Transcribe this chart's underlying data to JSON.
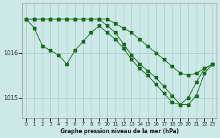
{
  "bg_color": "#cce8e8",
  "grid_color": "#aacccc",
  "line_color": "#1a6b1a",
  "xlabel": "Graphe pression niveau de la mer (hPa)",
  "xlim": [
    -0.5,
    23.5
  ],
  "ylim": [
    1014.55,
    1017.1
  ],
  "yticks": [
    1015,
    1016
  ],
  "xticks": [
    0,
    1,
    2,
    3,
    4,
    5,
    6,
    7,
    8,
    9,
    10,
    11,
    12,
    13,
    14,
    15,
    16,
    17,
    18,
    19,
    20,
    21,
    22,
    23
  ],
  "series": [
    {
      "x": [
        0,
        1,
        2,
        3,
        4,
        5,
        6,
        7,
        8,
        9,
        10,
        11,
        12,
        13,
        14,
        15,
        16,
        17,
        18,
        19,
        20,
        21,
        22,
        23
      ],
      "y": [
        1016.75,
        1016.75,
        1016.75,
        1016.75,
        1016.75,
        1016.75,
        1016.75,
        1016.75,
        1016.75,
        1016.75,
        1016.75,
        1016.65,
        1016.55,
        1016.45,
        1016.3,
        1016.15,
        1016.0,
        1015.85,
        1015.7,
        1015.55,
        1015.5,
        1015.55,
        1015.65,
        1015.75
      ]
    },
    {
      "x": [
        0,
        1,
        2,
        3,
        4,
        5,
        6,
        7,
        8,
        9,
        10,
        11,
        12,
        13,
        14,
        15,
        16,
        17,
        18,
        19,
        20,
        21,
        22,
        23
      ],
      "y": [
        1016.75,
        1016.55,
        1016.15,
        1016.05,
        1015.95,
        1015.75,
        1016.05,
        1016.25,
        1016.45,
        1016.6,
        1016.45,
        1016.3,
        1016.1,
        1015.85,
        1015.65,
        1015.5,
        1015.3,
        1015.1,
        1014.9,
        1014.85,
        1015.0,
        1015.35,
        1015.65,
        1015.75
      ]
    },
    {
      "x": [
        0,
        1,
        2,
        3,
        4,
        5,
        6,
        7,
        8,
        9,
        10,
        11,
        12,
        13,
        14,
        15,
        16,
        17,
        18,
        19,
        20,
        21,
        22,
        23
      ],
      "y": [
        1016.75,
        1016.75,
        1016.75,
        1016.75,
        1016.75,
        1016.75,
        1016.75,
        1016.75,
        1016.75,
        1016.75,
        1016.6,
        1016.45,
        1016.2,
        1015.95,
        1015.75,
        1015.6,
        1015.45,
        1015.25,
        1015.05,
        1014.85,
        1014.85,
        1015.05,
        1015.55,
        1015.75
      ]
    }
  ]
}
